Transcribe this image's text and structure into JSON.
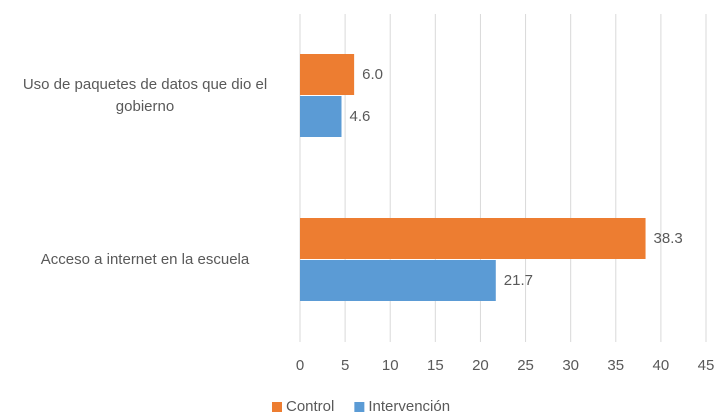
{
  "chart_data": {
    "type": "hbar",
    "categories": [
      "Uso de paquetes de datos que dio el gobierno",
      "Acceso a internet en la escuela"
    ],
    "series": [
      {
        "name": "Control",
        "color": "#ED7D31",
        "values": [
          6.0,
          38.3
        ],
        "value_labels": [
          "6.0",
          "38.3"
        ]
      },
      {
        "name": "Intervención",
        "color": "#5B9BD5",
        "values": [
          4.6,
          21.7
        ]
      }
    ],
    "xlim": [
      0,
      45
    ],
    "xticks": [
      0,
      5,
      10,
      15,
      20,
      25,
      30,
      35,
      40,
      45
    ],
    "grid": true,
    "legend": "bottom"
  }
}
